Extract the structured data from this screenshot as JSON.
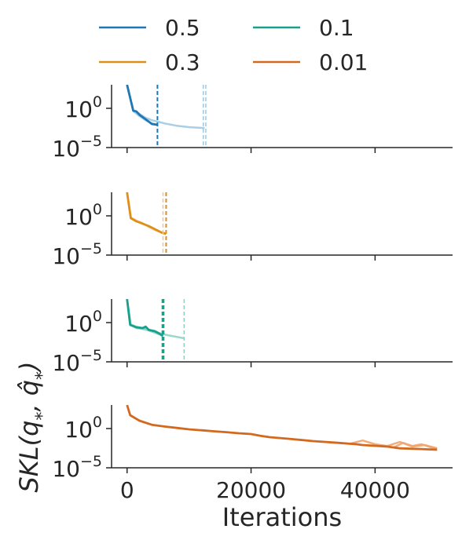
{
  "chart_data": {
    "type": "line",
    "xlabel": "Iterations",
    "ylabel": "SKL(q*, q̂*)",
    "x_ticks": [
      0,
      20000,
      40000
    ],
    "x_tick_labels": [
      "0",
      "20000",
      "40000"
    ],
    "xlim": [
      -2500,
      52500
    ],
    "y_scale": "log",
    "ylim": [
      1e-05,
      1000
    ],
    "y_ticks": [
      {
        "value": 1,
        "base": "10",
        "exp": "0"
      },
      {
        "value": 1e-05,
        "base": "10",
        "exp": "−5"
      }
    ],
    "grid": false,
    "legend": {
      "placement": "top",
      "columns": 2,
      "entries": [
        {
          "label": "0.5",
          "color": "#1f77b4"
        },
        {
          "label": "0.1",
          "color": "#17a08c"
        },
        {
          "label": "0.3",
          "color": "#de8f18"
        },
        {
          "label": "0.01",
          "color": "#d2691e"
        }
      ]
    },
    "panels": [
      {
        "key": "0.5",
        "color": "#1f77b4",
        "light_color": "#9ecae1",
        "series": [
          {
            "role": "main",
            "x": [
              0,
              1000,
              1500,
              2000,
              3000,
              4000,
              4900
            ],
            "y": [
              1000,
              0.5,
              0.4,
              0.15,
              0.04,
              0.01,
              0.008
            ]
          },
          {
            "role": "faint",
            "x": [
              0,
              1000,
              2000,
              3000,
              4000,
              5000,
              6000,
              8000,
              10000,
              12500
            ],
            "y": [
              1000,
              0.5,
              0.2,
              0.06,
              0.03,
              0.02,
              0.012,
              0.006,
              0.004,
              0.003
            ]
          },
          {
            "role": "faint",
            "x": [
              0,
              1000,
              2000,
              3000,
              4000,
              4800
            ],
            "y": [
              1000,
              0.45,
              0.1,
              0.03,
              0.012,
              0.009
            ]
          }
        ],
        "stop_lines": [
          {
            "x": 4900,
            "style": "main"
          },
          {
            "x": 12300,
            "style": "faint"
          },
          {
            "x": 12700,
            "style": "faint"
          }
        ]
      },
      {
        "key": "0.3",
        "color": "#de8f18",
        "light_color": "#f5c985",
        "series": [
          {
            "role": "main",
            "x": [
              0,
              600,
              1500,
              2500,
              3500,
              4500,
              5500,
              6300
            ],
            "y": [
              1000,
              0.5,
              0.2,
              0.1,
              0.05,
              0.02,
              0.008,
              0.005
            ]
          },
          {
            "role": "faint",
            "x": [
              0,
              600,
              1500,
              2500,
              3500,
              4500,
              5200,
              5800
            ],
            "y": [
              1000,
              0.6,
              0.25,
              0.12,
              0.04,
              0.015,
              0.01,
              0.006
            ]
          }
        ],
        "stop_lines": [
          {
            "x": 6300,
            "style": "main"
          },
          {
            "x": 5800,
            "style": "faint"
          }
        ]
      },
      {
        "key": "0.1",
        "color": "#17a08c",
        "light_color": "#8fd3c5",
        "series": [
          {
            "role": "main",
            "x": [
              0,
              500,
              1500,
              2500,
              3000,
              3500,
              4500,
              5200,
              5800
            ],
            "y": [
              1000,
              0.5,
              0.25,
              0.2,
              0.3,
              0.12,
              0.08,
              0.04,
              0.02
            ]
          },
          {
            "role": "faint",
            "x": [
              0,
              500,
              1500,
              2500,
              3500,
              4500,
              5500,
              6500,
              8000,
              9200
            ],
            "y": [
              1000,
              0.6,
              0.3,
              0.2,
              0.1,
              0.06,
              0.04,
              0.025,
              0.015,
              0.01
            ]
          },
          {
            "role": "faint",
            "x": [
              0,
              600,
              1500,
              2500,
              3500,
              4500,
              5200,
              5700
            ],
            "y": [
              1000,
              0.5,
              0.2,
              0.15,
              0.1,
              0.05,
              0.03,
              0.02
            ]
          }
        ],
        "stop_lines": [
          {
            "x": 5700,
            "style": "main"
          },
          {
            "x": 5900,
            "style": "main"
          },
          {
            "x": 9200,
            "style": "faint"
          }
        ]
      },
      {
        "key": "0.01",
        "color": "#d2691e",
        "light_color": "#f2a46a",
        "series": [
          {
            "role": "main",
            "x": [
              0,
              500,
              2000,
              4000,
              6000,
              8000,
              10000,
              12000,
              14000,
              16000,
              18000,
              20000,
              21500,
              23000,
              26000,
              30000,
              34000,
              37000,
              38000,
              42000,
              44000,
              47000,
              50000
            ],
            "y": [
              1000,
              50,
              10,
              3,
              1.8,
              1.2,
              0.8,
              0.6,
              0.45,
              0.35,
              0.25,
              0.2,
              0.12,
              0.08,
              0.05,
              0.025,
              0.015,
              0.01,
              0.008,
              0.005,
              0.003,
              0.0025,
              0.002
            ]
          },
          {
            "role": "faint",
            "x": [
              36000,
              38000,
              40000,
              42000,
              44000,
              46000,
              48000,
              50000
            ],
            "y": [
              0.012,
              0.03,
              0.01,
              0.006,
              0.02,
              0.005,
              0.008,
              0.003
            ]
          },
          {
            "role": "faint",
            "x": [
              43000,
              44500,
              46000,
              47500,
              49000,
              50000
            ],
            "y": [
              0.004,
              0.015,
              0.006,
              0.01,
              0.004,
              0.003
            ]
          }
        ],
        "stop_lines": []
      }
    ]
  }
}
